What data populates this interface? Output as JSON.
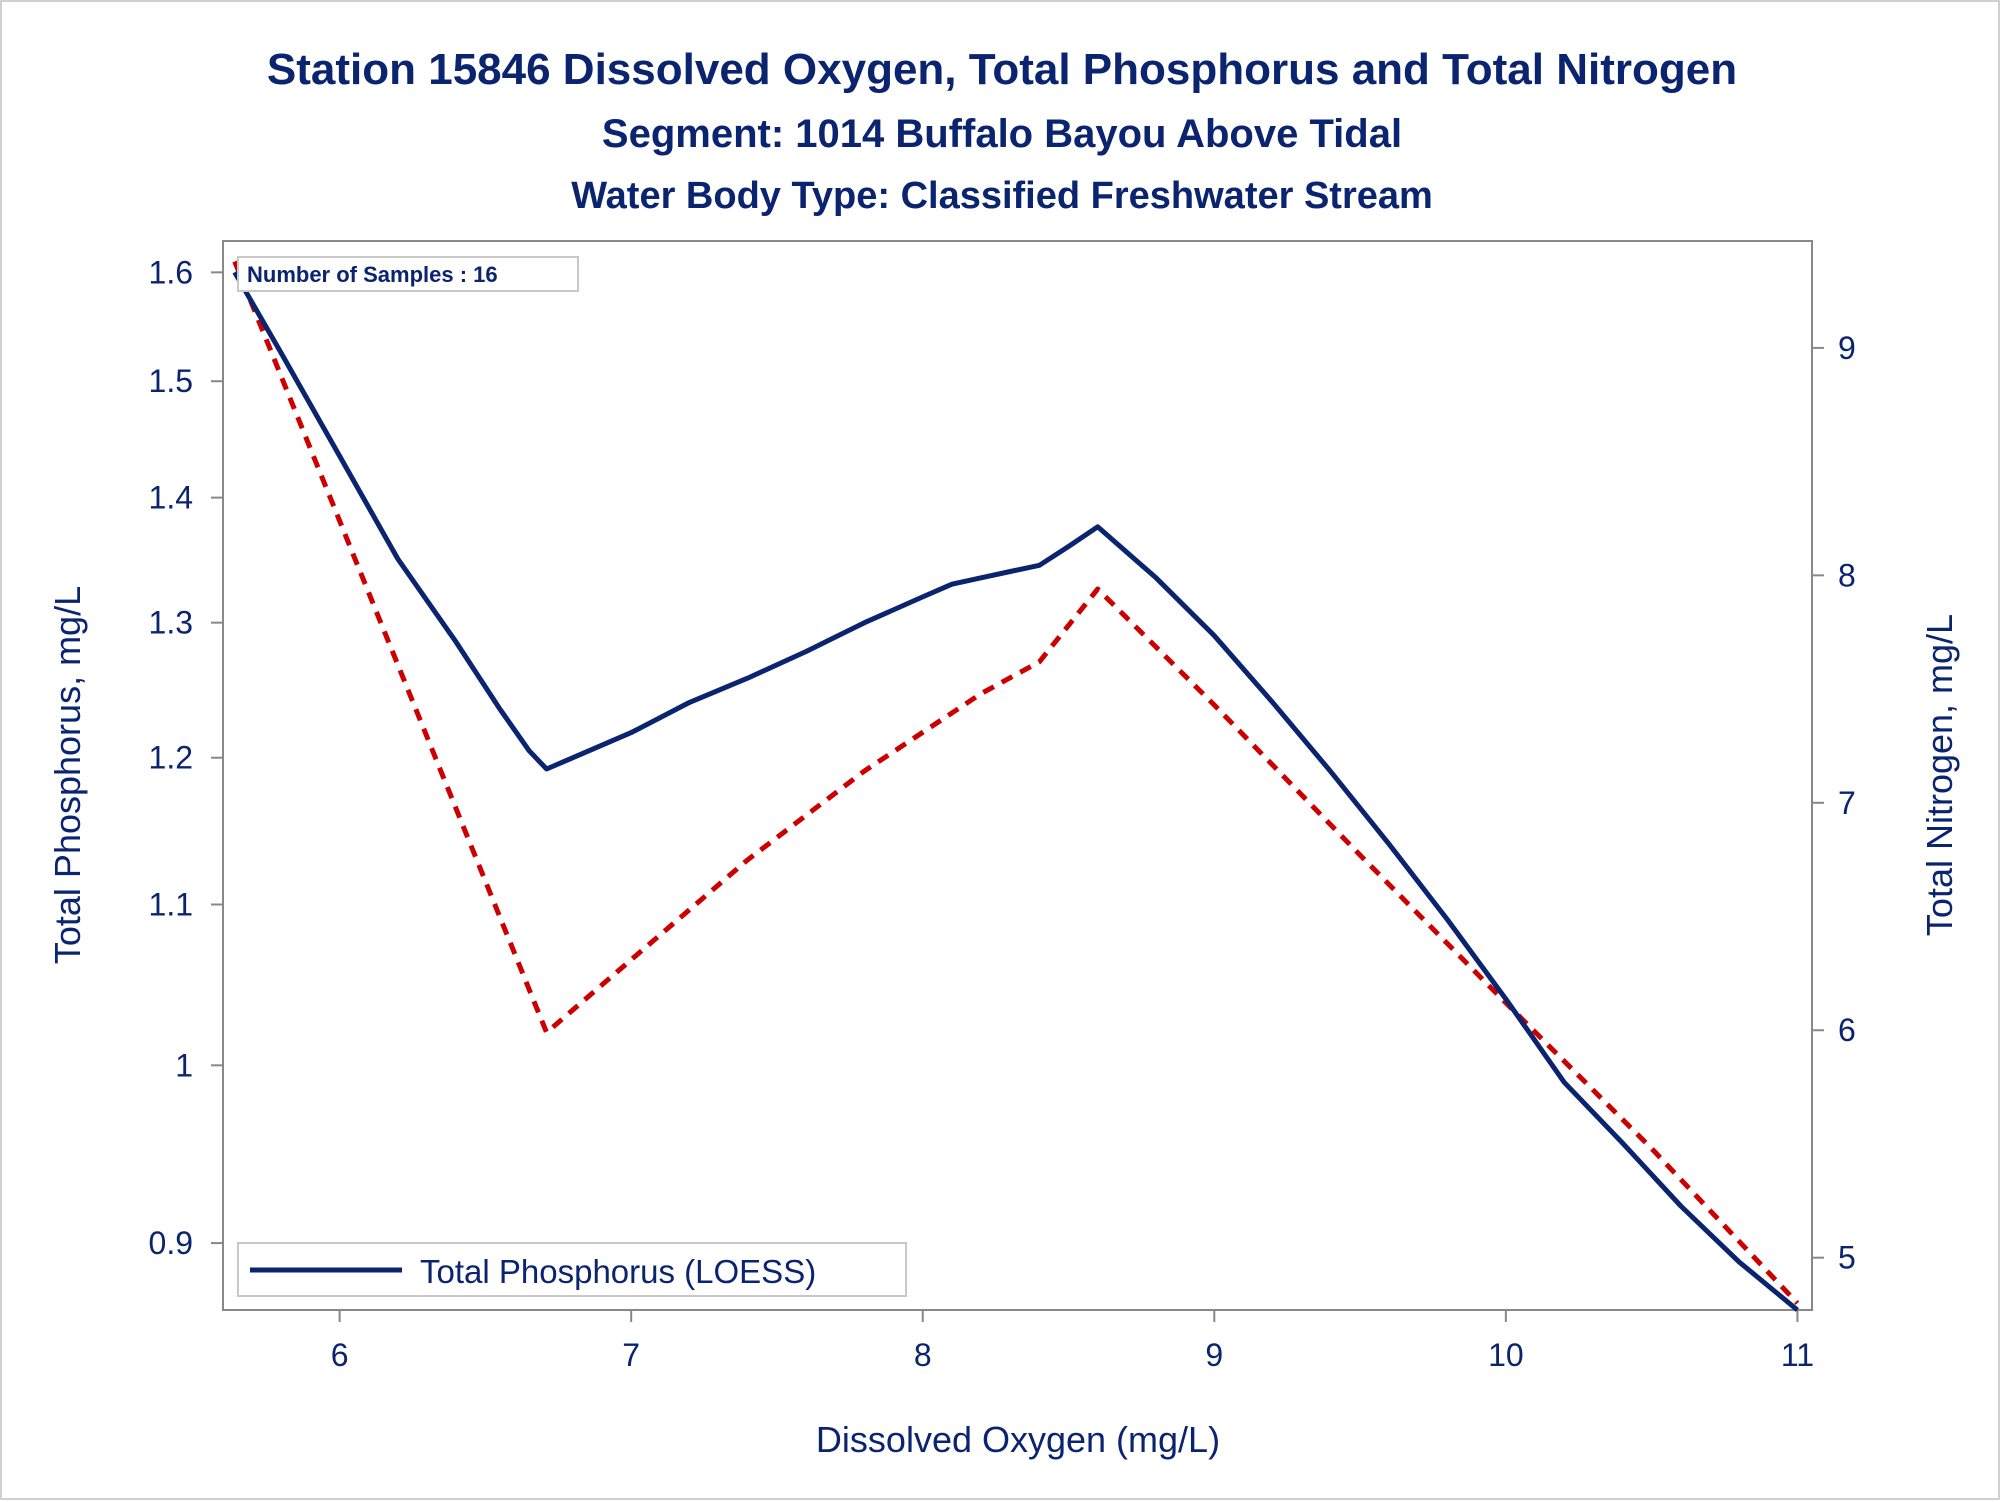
{
  "chart_data": {
    "type": "line",
    "title": "Station 15846  Dissolved Oxygen, Total Phosphorus and Total Nitrogen",
    "subtitle": "Segment: 1014  Buffalo Bayou Above Tidal",
    "subtitle2": "Water Body Type: Classified Freshwater Stream",
    "xlabel": "Dissolved Oxygen (mg/L)",
    "ylabel": "Total Phosphorus, mg/L",
    "y2label": "Total Nitrogen, mg/L",
    "xlim": [
      5.6,
      11.05
    ],
    "ylim": [
      0.865,
      1.63
    ],
    "y_scale": "log",
    "y2lim": [
      4.77,
      9.47
    ],
    "x_ticks": [
      6,
      7,
      8,
      9,
      10,
      11
    ],
    "y_ticks": [
      0.9,
      1,
      1.1,
      1.2,
      1.3,
      1.4,
      1.5,
      1.6
    ],
    "y2_ticks": [
      5,
      6,
      7,
      8,
      9
    ],
    "inset_text": "Number of Samples : 16",
    "legend": {
      "position": "bottom-left",
      "entries": [
        "Total Phosphorus (LOESS)"
      ]
    },
    "colors": {
      "phosphorus": "#0b2470",
      "nitrogen": "#cc0000",
      "text": "#0b2470",
      "axis": "#888888"
    },
    "series": [
      {
        "name": "Total Phosphorus (LOESS)",
        "axis": "left",
        "style": "solid",
        "x": [
          5.64,
          5.8,
          6.0,
          6.2,
          6.4,
          6.55,
          6.65,
          6.71,
          6.8,
          7.0,
          7.2,
          7.4,
          7.6,
          7.8,
          8.0,
          8.1,
          8.2,
          8.3,
          8.4,
          8.5,
          8.6,
          8.8,
          9.0,
          9.2,
          9.4,
          9.6,
          9.8,
          10.0,
          10.2,
          10.4,
          10.6,
          10.8,
          11.0
        ],
        "y": [
          1.6,
          1.525,
          1.435,
          1.35,
          1.285,
          1.235,
          1.205,
          1.192,
          1.2,
          1.218,
          1.24,
          1.258,
          1.278,
          1.3,
          1.32,
          1.33,
          1.335,
          1.34,
          1.345,
          1.36,
          1.376,
          1.335,
          1.29,
          1.24,
          1.19,
          1.14,
          1.09,
          1.04,
          0.99,
          0.955,
          0.92,
          0.89,
          0.865
        ]
      },
      {
        "name": "",
        "axis": "right",
        "style": "dashed",
        "x": [
          5.64,
          6.71,
          7.0,
          7.4,
          7.8,
          8.2,
          8.4,
          8.6,
          9.0,
          9.5,
          10.0,
          10.5,
          11.0
        ],
        "y": [
          9.38,
          5.99,
          6.31,
          6.75,
          7.14,
          7.48,
          7.62,
          7.94,
          7.43,
          6.77,
          6.12,
          5.48,
          4.8
        ]
      }
    ]
  }
}
